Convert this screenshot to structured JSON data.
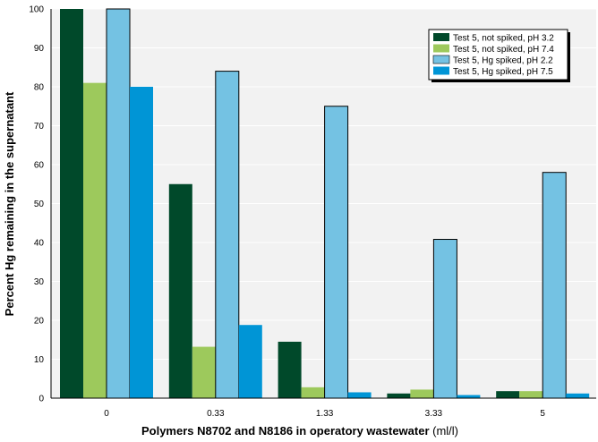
{
  "chart_data": {
    "type": "bar",
    "title": "",
    "xlabel": "Polymers N8702 and N8186 in operatory wastewater",
    "xlabel_unit": " (ml/l)",
    "ylabel": "Percent Hg remaining in the supernatant",
    "categories": [
      "0",
      "0.33",
      "1.33",
      "3.33",
      "5"
    ],
    "yticks": [
      "0",
      "10",
      "20",
      "30",
      "40",
      "50",
      "60",
      "70",
      "80",
      "90",
      "100"
    ],
    "ylim": [
      0,
      100
    ],
    "grid": "horizontal",
    "legend_position": "top-right",
    "series": [
      {
        "name": "Test 5, not spiked, pH 3.2",
        "color": "#00492a",
        "values": [
          100,
          55,
          14.5,
          1.2,
          1.8
        ]
      },
      {
        "name": "Test 5, not spiked, pH 7.4",
        "color": "#9dc95c",
        "values": [
          81,
          13.2,
          2.8,
          2.2,
          1.8
        ]
      },
      {
        "name": "Test 5, Hg spiked, pH 2.2",
        "color": "#74c2e3",
        "values": [
          100,
          84,
          75,
          40.8,
          58
        ]
      },
      {
        "name": "Test 5, Hg spiked, pH 7.5",
        "color": "#0095d6",
        "values": [
          80,
          18.8,
          1.5,
          0.8,
          1.2
        ]
      }
    ]
  }
}
